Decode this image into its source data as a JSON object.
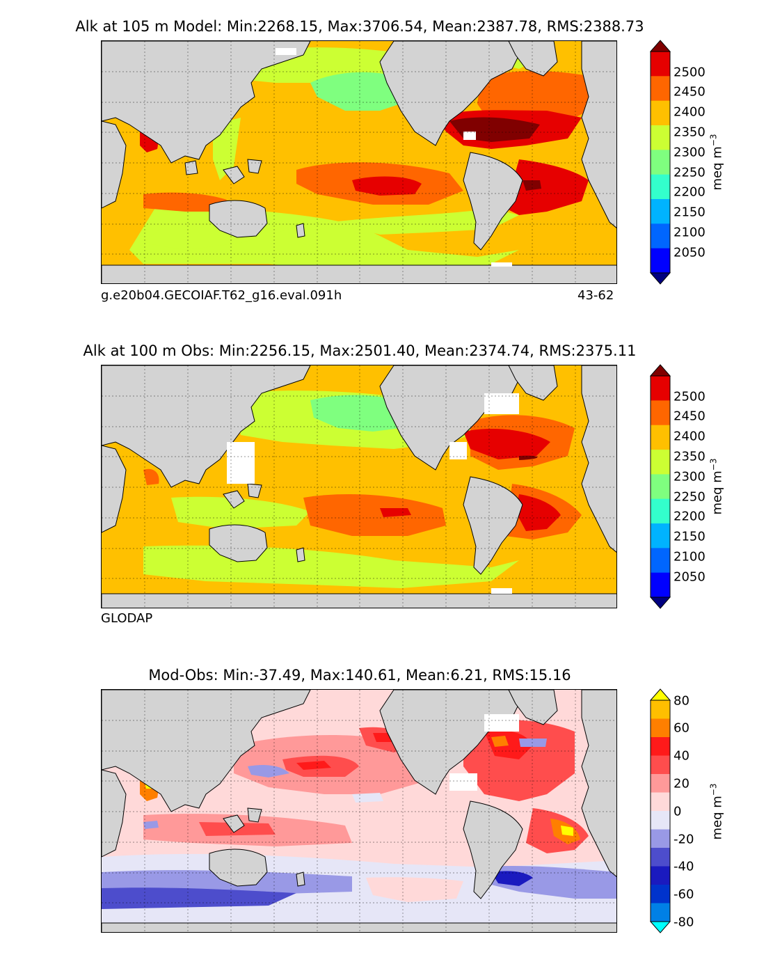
{
  "panels": [
    {
      "title": "Alk at 105 m Model: Min:2268.15, Max:3706.54, Mean:2387.78, RMS:2388.73",
      "caption_left": "g.e20b04.GECOIAF.T62_g16.eval.091h",
      "caption_right": "43-62",
      "colorbar": {
        "ticks": [
          "2500",
          "2450",
          "2400",
          "2350",
          "2300",
          "2250",
          "2200",
          "2150",
          "2100",
          "2050"
        ],
        "unit": "meq m",
        "unit_exp": "−3",
        "colors": [
          "#800000",
          "#e60000",
          "#ff6600",
          "#ffc000",
          "#ccff33",
          "#7fff7f",
          "#33ffcc",
          "#00b3ff",
          "#0066ff",
          "#0000ff",
          "#000080"
        ]
      }
    },
    {
      "title": "Alk at 100 m Obs: Min:2256.15, Max:2501.40, Mean:2374.74, RMS:2375.11",
      "caption_left": "GLODAP",
      "caption_right": "",
      "colorbar": {
        "ticks": [
          "2500",
          "2450",
          "2400",
          "2350",
          "2300",
          "2250",
          "2200",
          "2150",
          "2100",
          "2050"
        ],
        "unit": "meq m",
        "unit_exp": "−3",
        "colors": [
          "#800000",
          "#e60000",
          "#ff6600",
          "#ffc000",
          "#ccff33",
          "#7fff7f",
          "#33ffcc",
          "#00b3ff",
          "#0066ff",
          "#0000ff",
          "#000080"
        ]
      }
    },
    {
      "title": "Mod-Obs: Min:-37.49, Max:140.61, Mean:6.21, RMS:15.16",
      "caption_left": "",
      "caption_right": "",
      "colorbar": {
        "ticks": [
          "80",
          "60",
          "40",
          "20",
          "0",
          "-20",
          "-40",
          "-60",
          "-80"
        ],
        "unit": "meq m",
        "unit_exp": "−3",
        "colors": [
          "#ffff00",
          "#ffbf00",
          "#ff7f00",
          "#ff1a1a",
          "#ff4d4d",
          "#ff9999",
          "#ffd9d9",
          "#e6e6f7",
          "#9999e6",
          "#4d4dcc",
          "#1a1abf",
          "#0033cc",
          "#0080e6",
          "#00ffff"
        ]
      }
    }
  ]
}
